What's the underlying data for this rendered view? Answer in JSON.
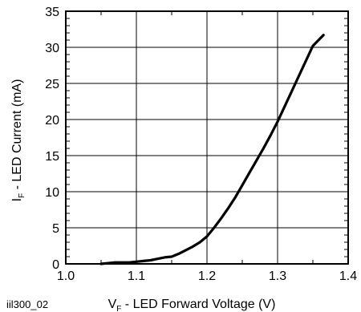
{
  "figure_code": "iil300_02",
  "chart_data": {
    "type": "line",
    "title": "",
    "xlabel": {
      "main": "V",
      "sub": "F",
      "rest": " - LED Forward Voltage (V)"
    },
    "ylabel": {
      "main": "I",
      "sub": "F",
      "rest": " - LED Current (mA)"
    },
    "xlim": [
      1.0,
      1.4
    ],
    "ylim": [
      0,
      35
    ],
    "xticks": [
      "1.0",
      "1.1",
      "1.2",
      "1.3",
      "1.4"
    ],
    "yticks": [
      "0",
      "5",
      "10",
      "15",
      "20",
      "25",
      "30",
      "35"
    ],
    "grid": true,
    "series": [
      {
        "x": [
          1.05,
          1.07,
          1.09,
          1.1,
          1.11,
          1.12,
          1.13,
          1.14,
          1.15,
          1.16,
          1.17,
          1.18,
          1.19,
          1.2,
          1.21,
          1.22,
          1.23,
          1.24,
          1.25,
          1.26,
          1.27,
          1.28,
          1.29,
          1.3,
          1.31,
          1.32,
          1.33,
          1.34,
          1.35,
          1.365
        ],
        "y": [
          0.0,
          0.2,
          0.2,
          0.3,
          0.4,
          0.5,
          0.7,
          0.9,
          1.0,
          1.4,
          1.9,
          2.4,
          3.0,
          3.8,
          5.0,
          6.3,
          7.7,
          9.2,
          10.9,
          12.6,
          14.3,
          16.0,
          17.8,
          19.7,
          21.8,
          23.9,
          26.0,
          28.1,
          30.2,
          31.7
        ]
      }
    ]
  }
}
